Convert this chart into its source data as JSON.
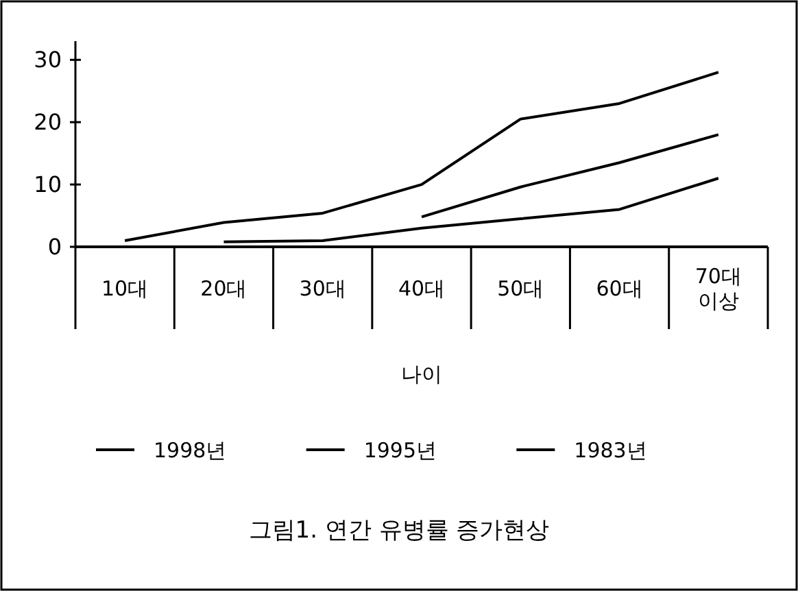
{
  "chart_data": {
    "type": "line",
    "title": "그림1. 연간 유병률 증가현상",
    "xlabel": "나이",
    "categories": [
      "10대",
      "20대",
      "30대",
      "40대",
      "50대",
      "60대",
      "70대\n이상"
    ],
    "series": [
      {
        "name": "1998년",
        "color": "#000000",
        "values": [
          1,
          3.9,
          5.4,
          10,
          20.5,
          23,
          28
        ]
      },
      {
        "name": "1995년",
        "color": "#000000",
        "values": [
          null,
          null,
          null,
          4.8,
          9.6,
          13.5,
          18
        ]
      },
      {
        "name": "1983년",
        "color": "#000000",
        "values": [
          null,
          0.8,
          1,
          3,
          4.5,
          6,
          11
        ]
      }
    ],
    "ylim": [
      0,
      33
    ],
    "yticks": [
      0,
      10,
      20,
      30
    ],
    "grid": false,
    "legend": "bottom",
    "marker": "none",
    "line_style": "solid"
  }
}
